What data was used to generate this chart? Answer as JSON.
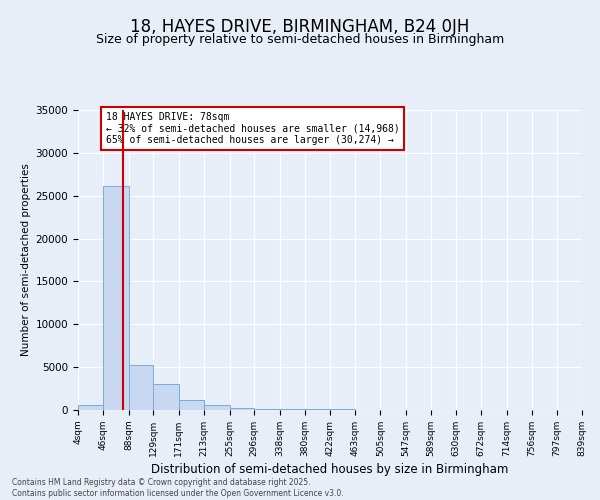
{
  "title": "18, HAYES DRIVE, BIRMINGHAM, B24 0JH",
  "subtitle": "Size of property relative to semi-detached houses in Birmingham",
  "xlabel": "Distribution of semi-detached houses by size in Birmingham",
  "ylabel": "Number of semi-detached properties",
  "bin_edges": [
    4,
    46,
    88,
    129,
    171,
    213,
    255,
    296,
    338,
    380,
    422,
    463,
    505,
    547,
    589,
    630,
    672,
    714,
    756,
    797,
    839
  ],
  "bar_heights": [
    600,
    26100,
    5200,
    3050,
    1200,
    550,
    200,
    150,
    100,
    80,
    60,
    50,
    40,
    30,
    25,
    20,
    15,
    10,
    8,
    5
  ],
  "bar_color": "#c8d8f0",
  "bar_edge_color": "#7aaad8",
  "property_size": 78,
  "red_line_color": "#cc0000",
  "annotation_text": "18 HAYES DRIVE: 78sqm\n← 32% of semi-detached houses are smaller (14,968)\n65% of semi-detached houses are larger (30,274) →",
  "annotation_box_color": "#ffffff",
  "annotation_border_color": "#cc0000",
  "ylim": [
    0,
    35000
  ],
  "yticks": [
    0,
    5000,
    10000,
    15000,
    20000,
    25000,
    30000,
    35000
  ],
  "footer": "Contains HM Land Registry data © Crown copyright and database right 2025.\nContains public sector information licensed under the Open Government Licence v3.0.",
  "bg_color": "#e8eef8",
  "plot_bg_color": "#e8eef8",
  "title_fontsize": 12,
  "subtitle_fontsize": 9,
  "tick_label_fontsize": 6.5,
  "ylabel_fontsize": 7.5,
  "xlabel_fontsize": 8.5,
  "footer_fontsize": 5.5
}
